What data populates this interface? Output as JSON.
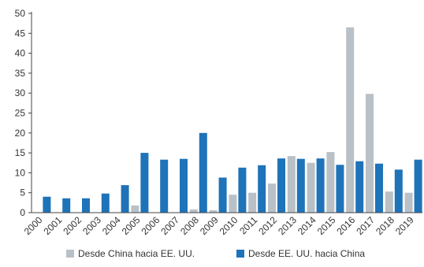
{
  "chart_data": {
    "type": "bar",
    "categories": [
      "2000",
      "2001",
      "2002",
      "2003",
      "2004",
      "2005",
      "2006",
      "2007",
      "2008",
      "2009",
      "2010",
      "2011",
      "2012",
      "2013",
      "2014",
      "2015",
      "2016",
      "2017",
      "2018",
      "2019"
    ],
    "series": [
      {
        "name": "Desde China hacia EE. UU.",
        "color": "#b9c0c6",
        "values": [
          0,
          0,
          0,
          0,
          0,
          1.8,
          0,
          0,
          0.8,
          0.6,
          4.5,
          5,
          7.3,
          14.2,
          12.5,
          15.2,
          46.5,
          29.8,
          5.3,
          5
        ]
      },
      {
        "name": "Desde EE. UU. hacia China",
        "color": "#1f73b9",
        "values": [
          4,
          3.6,
          3.6,
          4.8,
          6.9,
          15,
          13.3,
          13.5,
          20,
          8.8,
          11.3,
          11.9,
          13.6,
          13.5,
          13.6,
          12,
          12.9,
          12.3,
          10.8,
          13.3
        ]
      }
    ],
    "ylim": [
      0,
      50
    ],
    "yticks": [
      "0",
      "5",
      "10",
      "15",
      "20",
      "25",
      "30",
      "35",
      "40",
      "45",
      "50"
    ],
    "grid": false,
    "legend_position": "bottom"
  }
}
